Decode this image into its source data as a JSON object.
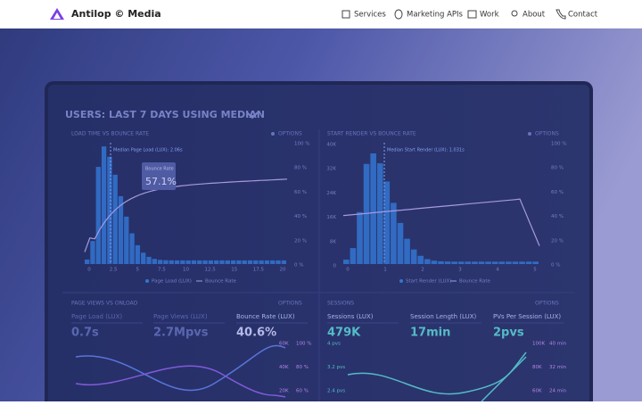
{
  "header": {
    "brand": "Antilop © Media",
    "nav": [
      "Services",
      "Marketing APIs",
      "Work",
      "About",
      "Contact"
    ]
  },
  "hero": {
    "screen": {
      "title": "USERS: LAST 7 DAYS USING MEDIAN",
      "panels": [
        {
          "title": "LOAD TIME VS BOUNCE RATE",
          "options": "OPTIONS",
          "annotation": "Median Page Load (LUX): 2.06s",
          "callout_label": "Bounce Rate",
          "callout": "57.1%",
          "x_labels": [
            "0",
            "2.5",
            "5",
            "7.5",
            "10",
            "12.5",
            "15",
            "17.5",
            "20"
          ],
          "y2_labels": [
            "100 %",
            "80 %",
            "60 %",
            "40 %",
            "20 %",
            "0 %"
          ],
          "legend": [
            "Page Load (LUX)",
            "Bounce Rate"
          ]
        },
        {
          "title": "START RENDER VS BOUNCE RATE",
          "options": "OPTIONS",
          "annotation": "Median Start Render (LUX): 1.031s",
          "y_labels": [
            "40K",
            "32K",
            "24K",
            "16K",
            "8K",
            "0"
          ],
          "x_labels": [
            "0",
            "1",
            "2",
            "3",
            "4",
            "5"
          ],
          "y2_labels": [
            "100 %",
            "80 %",
            "60 %",
            "40 %",
            "20 %",
            "0 %"
          ],
          "legend": [
            "Start Render (LUX)",
            "Bounce Rate"
          ]
        }
      ],
      "bottom": [
        {
          "title": "PAGE VIEWS VS ONLOAD",
          "options": "OPTIONS",
          "metrics": [
            {
              "label": "Page Load (LUX)",
              "value": "0.7s"
            },
            {
              "label": "Page Views (LUX)",
              "value": "2.7Mpvs"
            },
            {
              "label": "Bounce Rate (LUX)",
              "value": "40.6%"
            }
          ],
          "axis_a": [
            "60K",
            "40K",
            "20K"
          ],
          "axis_b": [
            "100 %",
            "80 %",
            "60 %"
          ]
        },
        {
          "title": "SESSIONS",
          "options": "OPTIONS",
          "metrics": [
            {
              "label": "Sessions (LUX)",
              "value": "479K"
            },
            {
              "label": "Session Length (LUX)",
              "value": "17min"
            },
            {
              "label": "PVs Per Session (LUX)",
              "value": "2pvs"
            }
          ],
          "axis_l": [
            "4 pvs",
            "3.2 pvs",
            "2.4 pvs"
          ],
          "axis_a": [
            "100K",
            "80K",
            "60K"
          ],
          "axis_b": [
            "40 min",
            "32 min",
            "24 min"
          ]
        }
      ]
    }
  }
}
